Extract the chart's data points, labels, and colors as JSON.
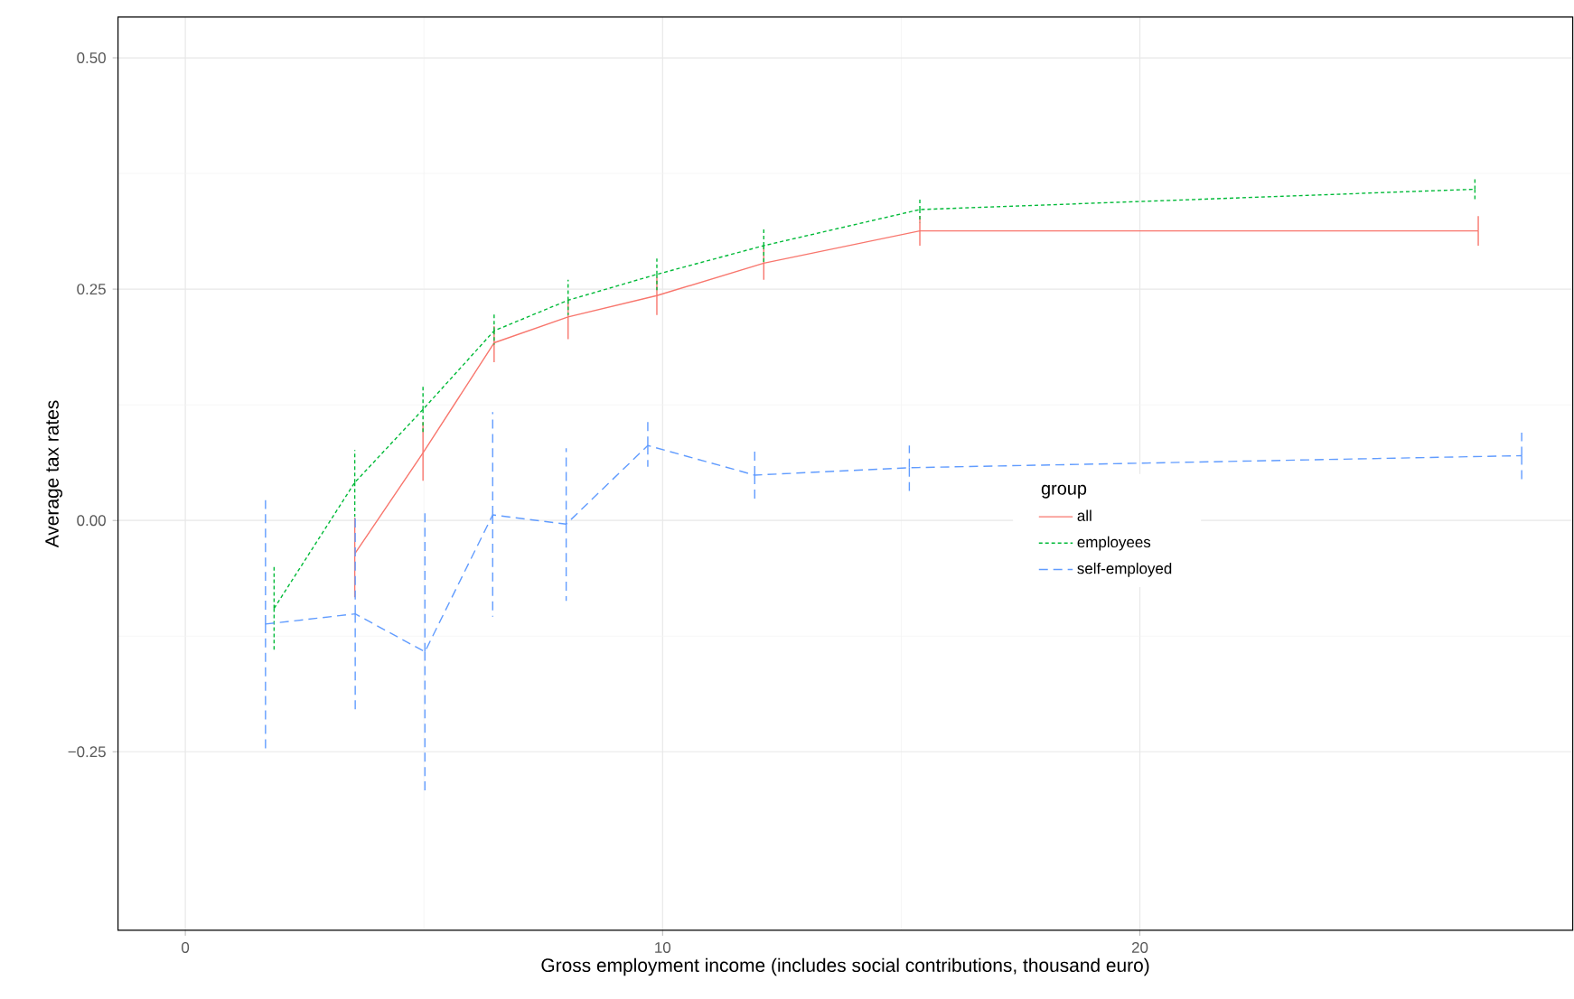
{
  "chart_data": {
    "type": "line",
    "xlabel": "Gross employment income (includes social contributions, thousand euro)",
    "ylabel": "Average tax rates",
    "legend_title": "group",
    "legend": "right",
    "grid": true,
    "marker": "none",
    "xlim": [
      -1.41,
      29.07
    ],
    "ylim": [
      -0.443,
      0.544
    ],
    "xticks": [
      0,
      10,
      20
    ],
    "yticks": [
      {
        "value": -0.25,
        "label": "−0.25"
      },
      {
        "value": 0,
        "label": "0.00"
      },
      {
        "value": 0.25,
        "label": "0.25"
      },
      {
        "value": 0.5,
        "label": "0.50"
      }
    ],
    "series": [
      {
        "name": "all",
        "color": "#f8766d",
        "line_style": "solid",
        "x": [
          3.55,
          4.98,
          6.47,
          8.02,
          9.88,
          12.12,
          15.39,
          27.09
        ],
        "values": [
          -0.036,
          0.073,
          0.192,
          0.22,
          0.243,
          0.278,
          0.313,
          0.313
        ],
        "errors": [
          [
            -0.083,
            0.003
          ],
          [
            0.043,
            0.106
          ],
          [
            0.171,
            0.21
          ],
          [
            0.196,
            0.24
          ],
          [
            0.222,
            0.263
          ],
          [
            0.26,
            0.296
          ],
          [
            0.297,
            0.329
          ],
          [
            0.297,
            0.329
          ]
        ]
      },
      {
        "name": "employees",
        "color": "#00ba38",
        "line_style": "dotted",
        "x": [
          1.86,
          3.55,
          4.98,
          6.47,
          8.02,
          9.88,
          12.12,
          15.39,
          27.02
        ],
        "values": [
          -0.095,
          0.041,
          0.12,
          0.205,
          0.238,
          0.266,
          0.297,
          0.336,
          0.358
        ],
        "errors": [
          [
            -0.14,
            -0.049
          ],
          [
            0.004,
            0.076
          ],
          [
            0.094,
            0.146
          ],
          [
            0.19,
            0.223
          ],
          [
            0.222,
            0.26
          ],
          [
            0.249,
            0.283
          ],
          [
            0.279,
            0.317
          ],
          [
            0.322,
            0.349
          ],
          [
            0.345,
            0.371
          ]
        ]
      },
      {
        "name": "self-employed",
        "color": "#619cff",
        "line_style": "dashed",
        "x": [
          1.68,
          3.56,
          5.02,
          6.44,
          7.98,
          9.69,
          11.93,
          15.17,
          28.0
        ],
        "values": [
          -0.112,
          -0.101,
          -0.142,
          0.006,
          -0.004,
          0.081,
          0.049,
          0.057,
          0.07
        ],
        "errors": [
          [
            -0.248,
            0.022
          ],
          [
            -0.205,
            0.003
          ],
          [
            -0.295,
            0.008
          ],
          [
            -0.104,
            0.117
          ],
          [
            -0.087,
            0.078
          ],
          [
            0.058,
            0.107
          ],
          [
            0.021,
            0.076
          ],
          [
            0.032,
            0.081
          ],
          [
            0.043,
            0.095
          ]
        ]
      }
    ]
  }
}
